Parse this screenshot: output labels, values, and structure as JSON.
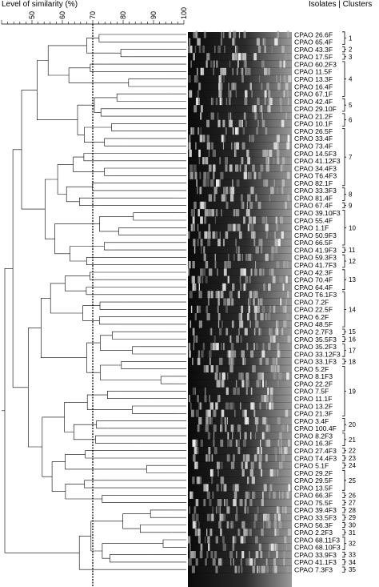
{
  "header": {
    "left_title": "Level of similarity  (%)",
    "right_title": "Isolates | Clusters"
  },
  "scale": {
    "ticks": [
      50,
      60,
      70,
      80,
      90,
      100
    ],
    "min": 40,
    "max": 100,
    "cutoff": 70
  },
  "isolates": [
    "CPAO 26.6F",
    "CPAO 65.4F",
    "CPAO 43.3F",
    "CPAO 17.5F",
    "CPAO 60.2F3",
    "CPAO 11.5F",
    "CPAO 13.3F",
    "CPAO 16.4F",
    "CPAO 67.1F",
    "CPAO 42.4F",
    "CPAO 29.10F",
    "CPAO 21.2F",
    "CPAO 10.1F",
    "CPAO 26.5F",
    "CPAO 33.4F",
    "CPAO 73.4F",
    "CPAO 14.5F3",
    "CPAO 41.12F3",
    "CPAO 34.4F3",
    "CPAO T6.4F3",
    "CPAO 82.1F",
    "CPAO 33.3F3",
    "CPAO 81.4F",
    "CPAO 67.4F",
    "CPAO 39.10F3",
    "CPAO 55.4F",
    "CPAO  1.1F",
    "CPAO 50.9F3",
    "CPAO 66.5F",
    "CPAO 41.9F3",
    "CPAO 59.3F3",
    "CPAO 41.7F3",
    "CPAO 42.3F",
    "CPAO 70.4F",
    "CPAO 64.4F",
    "CPAO T6.1F3",
    "CPAO 7.2F",
    "CPAO 22.5F",
    "CPAO  6.2F",
    "CPAO 48.5F",
    "CPAO 2.7F3",
    "CPAO 35.5F3",
    "CPAO 35.2F3",
    "CPAO 33.12F3",
    "CPAO 33.1F3",
    "CPAO  5.2F",
    "CPAO 8.1F3",
    "CPAO 22.2F",
    "CPAO  7.5F",
    "CPAO 11.1F",
    "CPAO 13.2F",
    "CPAO 21.3F",
    "CPAO  3.4F",
    "CPAO 100.4F",
    "CPAO 8.2F3",
    "CPAO 16.3F",
    "CPAO 27.4F3",
    "CPAO T4.4F3",
    "CPAO  5.1F",
    "CPAO 29.2F",
    "CPAO 29.5F",
    "CPAO 13.5F",
    "CPAO 66.3F",
    "CPAO 75.5F",
    "CPAO 39.4F3",
    "CPAO 33.5F3",
    "CPAO 56.3F",
    "CPAO 2.2F3",
    "CPAO 68.11F3",
    "CPAO 68.10F3",
    "CPAO 33.9F3",
    "CPAO 41.1F3",
    "CPAO 7.3F3"
  ],
  "clusters": [
    {
      "label": "1",
      "start": 0,
      "end": 1
    },
    {
      "label": "2",
      "start": 2,
      "end": 2
    },
    {
      "label": "3",
      "start": 3,
      "end": 3
    },
    {
      "label": "4",
      "start": 4,
      "end": 8
    },
    {
      "label": "5",
      "start": 9,
      "end": 10
    },
    {
      "label": "6",
      "start": 11,
      "end": 12
    },
    {
      "label": "7",
      "start": 13,
      "end": 20
    },
    {
      "label": "8",
      "start": 21,
      "end": 22
    },
    {
      "label": "9",
      "start": 23,
      "end": 23
    },
    {
      "label": "10",
      "start": 24,
      "end": 28
    },
    {
      "label": "11",
      "start": 29,
      "end": 29
    },
    {
      "label": "12",
      "start": 30,
      "end": 31
    },
    {
      "label": "13",
      "start": 32,
      "end": 34
    },
    {
      "label": "14",
      "start": 35,
      "end": 39
    },
    {
      "label": "15",
      "start": 40,
      "end": 40
    },
    {
      "label": "16",
      "start": 41,
      "end": 41
    },
    {
      "label": "17",
      "start": 42,
      "end": 43
    },
    {
      "label": "18",
      "start": 44,
      "end": 44
    },
    {
      "label": "19",
      "start": 45,
      "end": 51
    },
    {
      "label": "20",
      "start": 52,
      "end": 53
    },
    {
      "label": "21",
      "start": 54,
      "end": 55
    },
    {
      "label": "22",
      "start": 56,
      "end": 56
    },
    {
      "label": "23",
      "start": 57,
      "end": 57
    },
    {
      "label": "24",
      "start": 58,
      "end": 58
    },
    {
      "label": "25",
      "start": 59,
      "end": 61
    },
    {
      "label": "26",
      "start": 62,
      "end": 62
    },
    {
      "label": "27",
      "start": 63,
      "end": 63
    },
    {
      "label": "28",
      "start": 64,
      "end": 64
    },
    {
      "label": "29",
      "start": 65,
      "end": 65
    },
    {
      "label": "30",
      "start": 66,
      "end": 66
    },
    {
      "label": "31",
      "start": 67,
      "end": 67
    },
    {
      "label": "32",
      "start": 68,
      "end": 69
    },
    {
      "label": "33",
      "start": 70,
      "end": 70
    },
    {
      "label": "34",
      "start": 71,
      "end": 71
    },
    {
      "label": "35",
      "start": 72,
      "end": 72
    }
  ]
}
